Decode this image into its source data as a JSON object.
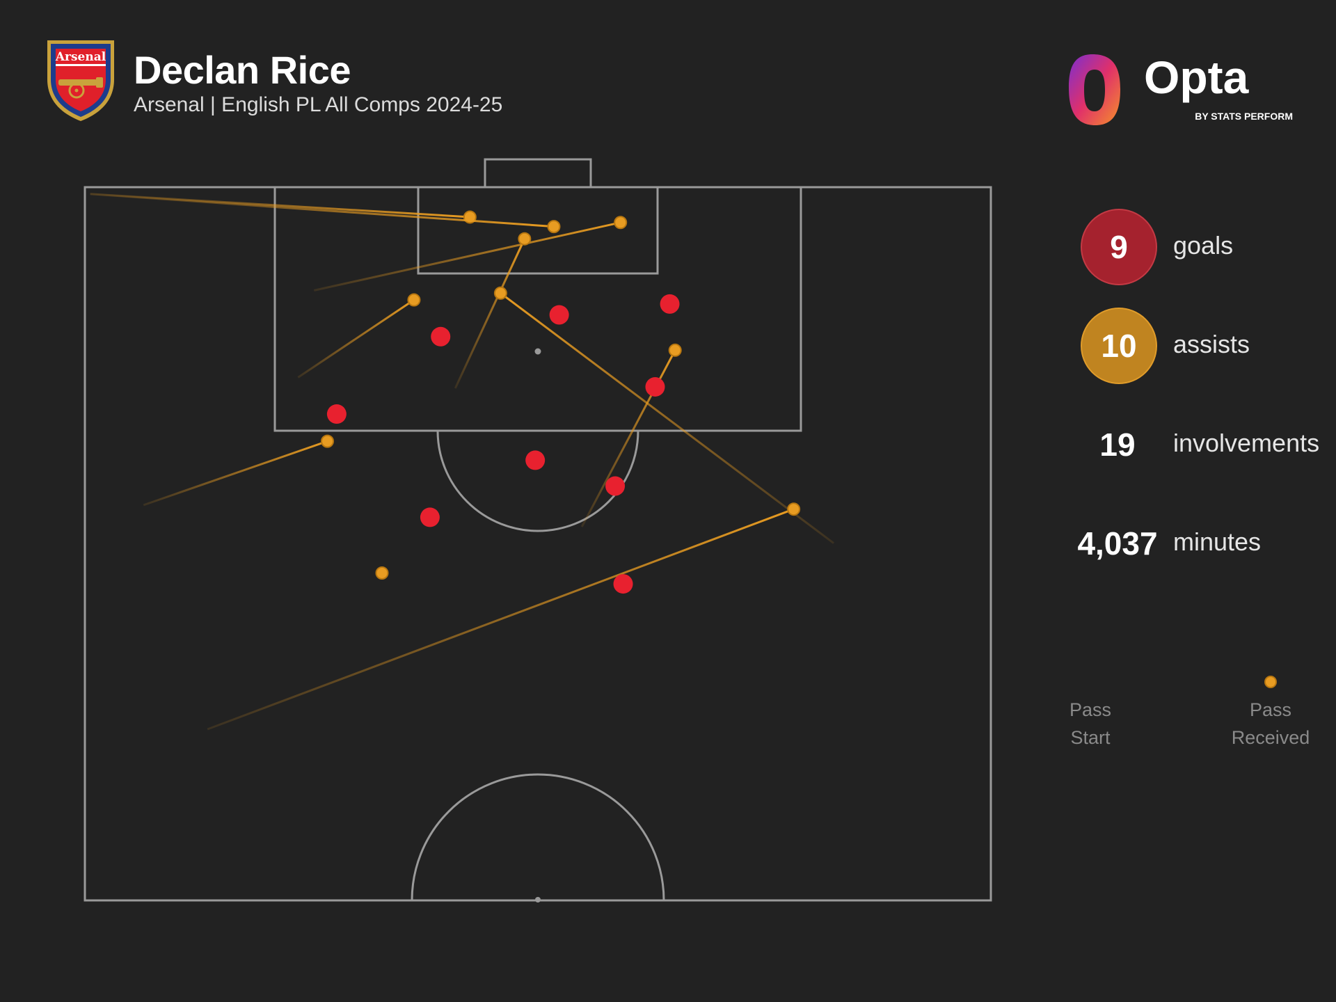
{
  "header": {
    "title": "Declan Rice",
    "subtitle": "Arsenal | English PL All Comps 2024-25",
    "crest_text": "Arsenal"
  },
  "brand": {
    "name": "Opta",
    "tagline": "BY STATS PERFORM"
  },
  "stats": [
    {
      "value": "9",
      "label": "goals",
      "style": "goals"
    },
    {
      "value": "10",
      "label": "assists",
      "style": "assists"
    },
    {
      "value": "19",
      "label": "involvements",
      "style": "plain"
    },
    {
      "value": "4,037",
      "label": "minutes",
      "style": "plain"
    }
  ],
  "legend": {
    "start_label": "Pass\nStart",
    "end_label": "Pass\nReceived"
  },
  "colors": {
    "background": "#222222",
    "pitch_lines": "#9a9a9a",
    "goal_marker": "#e8212f",
    "assist_marker": "#e89c22",
    "goals_circle": "#a5222e",
    "assists_circle": "#c08420"
  },
  "chart_data": {
    "type": "scatter",
    "pitch_units": "x = metres across pitch width (0-68), y = metres from goal line (0-52.5, halfway line)",
    "xlim": [
      0,
      68
    ],
    "ylim": [
      0,
      52.5
    ],
    "goals": [
      {
        "x": 26.7,
        "y": 11.0
      },
      {
        "x": 35.6,
        "y": 9.4
      },
      {
        "x": 43.9,
        "y": 8.6
      },
      {
        "x": 18.9,
        "y": 16.7
      },
      {
        "x": 42.8,
        "y": 14.7
      },
      {
        "x": 33.8,
        "y": 20.1
      },
      {
        "x": 39.8,
        "y": 22.0
      },
      {
        "x": 25.9,
        "y": 24.3
      },
      {
        "x": 40.4,
        "y": 29.2
      }
    ],
    "assists": [
      {
        "start": {
          "x": 0.4,
          "y": 0.5
        },
        "end": {
          "x": 28.9,
          "y": 2.2
        }
      },
      {
        "start": {
          "x": 0.4,
          "y": 0.5
        },
        "end": {
          "x": 35.2,
          "y": 2.9
        }
      },
      {
        "start": {
          "x": 17.2,
          "y": 7.6
        },
        "end": {
          "x": 40.2,
          "y": 2.6
        }
      },
      {
        "start": {
          "x": 27.8,
          "y": 14.8
        },
        "end": {
          "x": 33.0,
          "y": 3.8
        }
      },
      {
        "start": {
          "x": 16.0,
          "y": 14.0
        },
        "end": {
          "x": 24.7,
          "y": 8.3
        }
      },
      {
        "start": {
          "x": 56.2,
          "y": 26.2
        },
        "end": {
          "x": 31.2,
          "y": 7.8
        }
      },
      {
        "start": {
          "x": 37.3,
          "y": 25.0
        },
        "end": {
          "x": 44.3,
          "y": 12.0
        }
      },
      {
        "start": {
          "x": 4.4,
          "y": 23.4
        },
        "end": {
          "x": 18.2,
          "y": 18.7
        }
      },
      {
        "start": {
          "x": 9.2,
          "y": 39.9
        },
        "end": {
          "x": 53.2,
          "y": 23.7
        }
      },
      {
        "start": {
          "x": 22.3,
          "y": 28.4
        },
        "end": {
          "x": 22.3,
          "y": 28.4
        }
      }
    ]
  }
}
